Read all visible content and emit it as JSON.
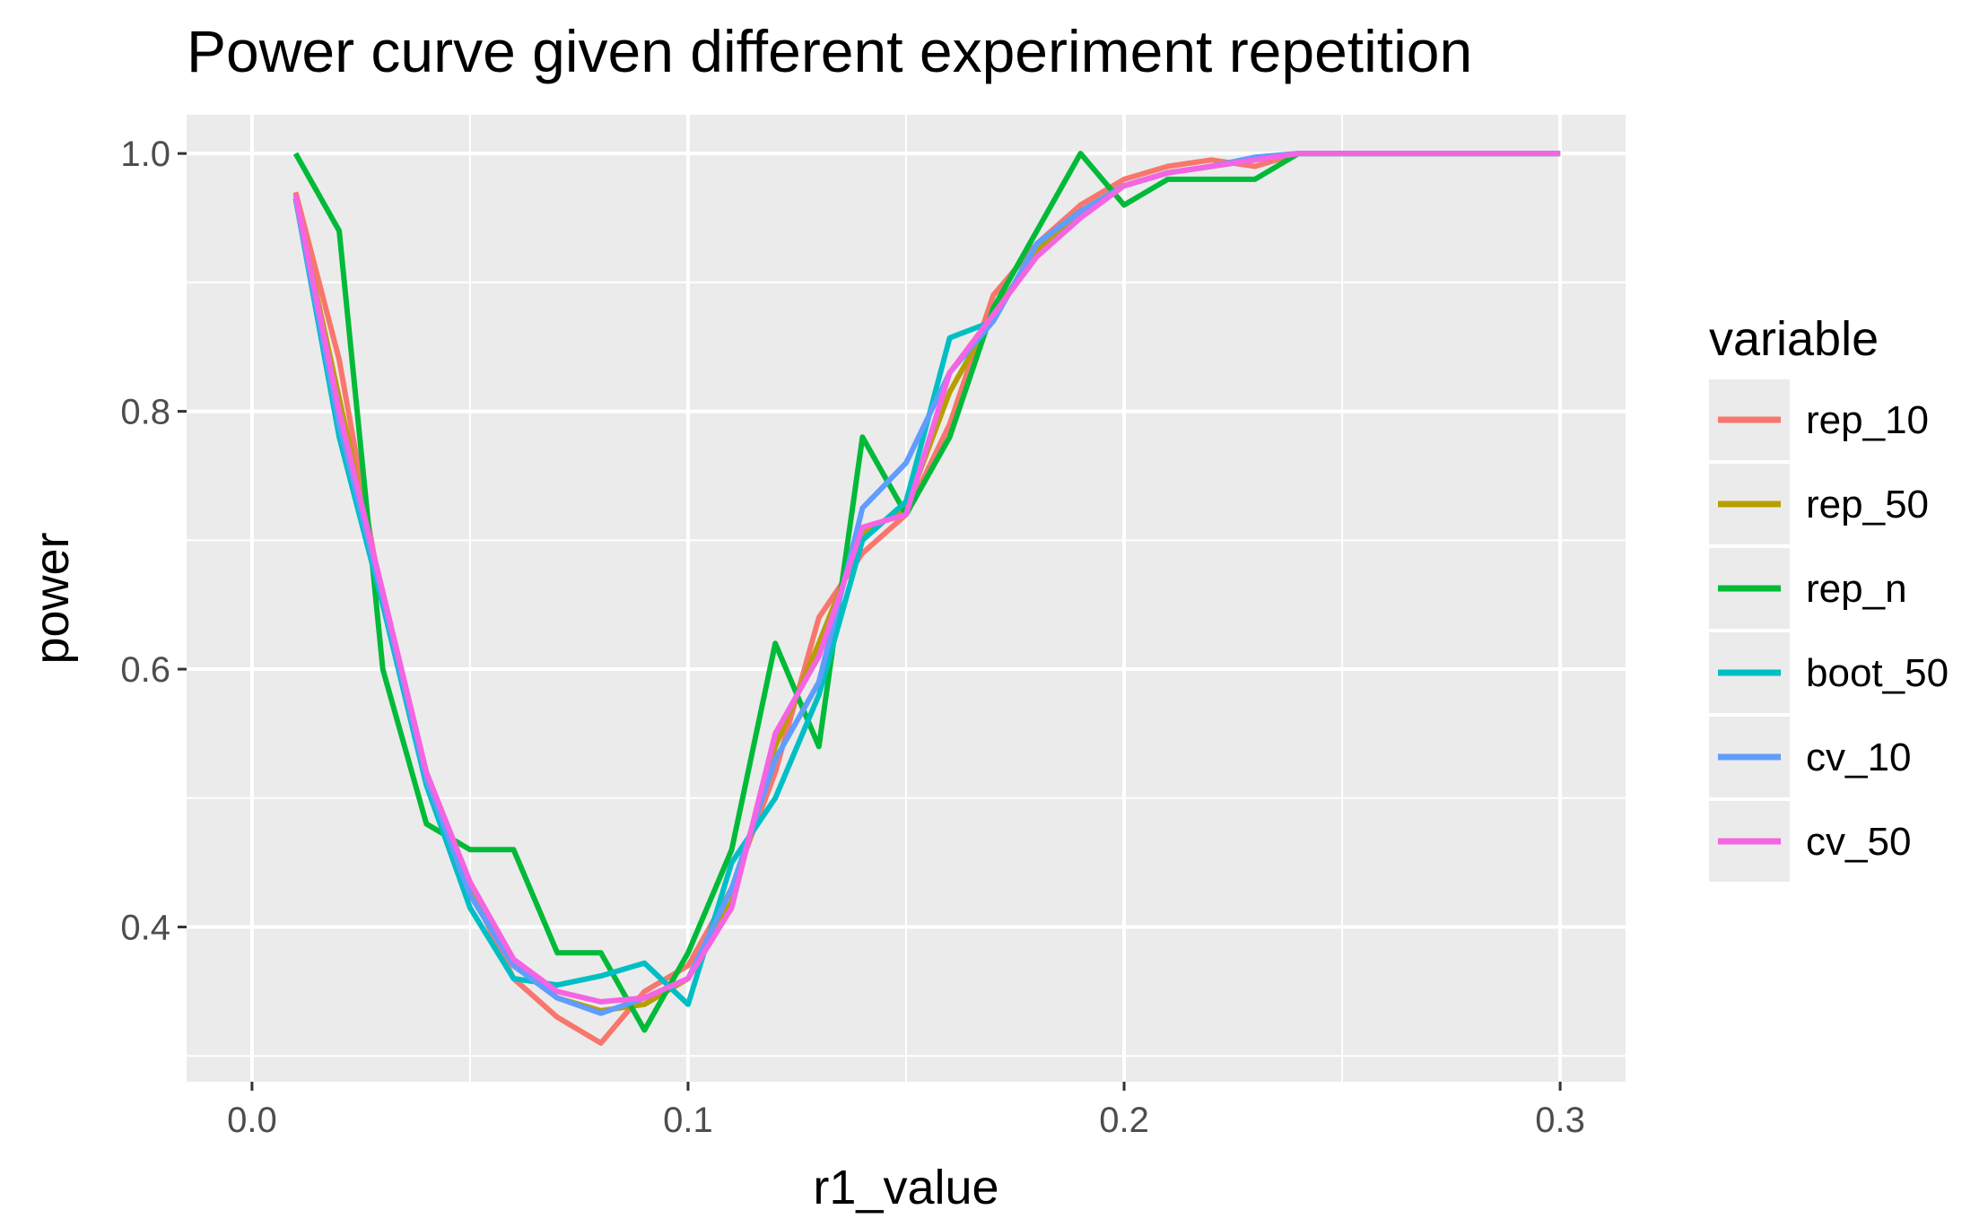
{
  "chart_data": {
    "type": "line",
    "title": "Power curve given different experiment repetition",
    "xlabel": "r1_value",
    "ylabel": "power",
    "xlim": [
      -0.015,
      0.315
    ],
    "ylim": [
      0.28,
      1.03
    ],
    "xticks": [
      0.0,
      0.1,
      0.2,
      0.3
    ],
    "xtick_labels": [
      "0.0",
      "0.1",
      "0.2",
      "0.3"
    ],
    "yticks": [
      0.4,
      0.6,
      0.8,
      1.0
    ],
    "ytick_labels": [
      "0.4",
      "0.6",
      "0.8",
      "1.0"
    ],
    "grid": true,
    "legend_title": "variable",
    "legend_position": "right",
    "x": [
      0.01,
      0.02,
      0.03,
      0.04,
      0.05,
      0.06,
      0.07,
      0.08,
      0.09,
      0.1,
      0.11,
      0.12,
      0.13,
      0.14,
      0.15,
      0.16,
      0.17,
      0.18,
      0.19,
      0.2,
      0.21,
      0.22,
      0.23,
      0.24,
      0.25,
      0.26,
      0.27,
      0.28,
      0.29,
      0.3
    ],
    "series": [
      {
        "name": "rep_10",
        "color": "#F8766D",
        "values": [
          0.97,
          0.84,
          0.65,
          0.52,
          0.43,
          0.36,
          0.33,
          0.31,
          0.35,
          0.37,
          0.43,
          0.52,
          0.64,
          0.69,
          0.72,
          0.79,
          0.89,
          0.93,
          0.96,
          0.98,
          0.99,
          0.995,
          0.99,
          1.0,
          1.0,
          1.0,
          1.0,
          1.0,
          1.0,
          1.0
        ]
      },
      {
        "name": "rep_50",
        "color": "#B79F00",
        "values": [
          0.965,
          0.81,
          0.655,
          0.515,
          0.43,
          0.37,
          0.345,
          0.335,
          0.34,
          0.36,
          0.42,
          0.54,
          0.62,
          0.705,
          0.725,
          0.815,
          0.875,
          0.925,
          0.955,
          0.975,
          0.985,
          0.99,
          0.995,
          1.0,
          1.0,
          1.0,
          1.0,
          1.0,
          1.0,
          1.0
        ]
      },
      {
        "name": "rep_n",
        "color": "#00BA38",
        "values": [
          1.0,
          0.94,
          0.6,
          0.48,
          0.46,
          0.46,
          0.38,
          0.38,
          0.32,
          0.38,
          0.46,
          0.62,
          0.54,
          0.78,
          0.72,
          0.78,
          0.88,
          0.94,
          1.0,
          0.96,
          0.98,
          0.98,
          0.98,
          1.0,
          1.0,
          1.0,
          1.0,
          1.0,
          1.0,
          1.0
        ]
      },
      {
        "name": "boot_50",
        "color": "#00BFC4",
        "values": [
          0.965,
          0.78,
          0.65,
          0.51,
          0.415,
          0.36,
          0.355,
          0.362,
          0.372,
          0.34,
          0.45,
          0.5,
          0.58,
          0.7,
          0.73,
          0.857,
          0.87,
          0.93,
          0.955,
          0.975,
          0.985,
          0.99,
          0.997,
          1.0,
          1.0,
          1.0,
          1.0,
          1.0,
          1.0,
          1.0
        ]
      },
      {
        "name": "cv_10",
        "color": "#619CFF",
        "values": [
          0.965,
          0.79,
          0.655,
          0.515,
          0.425,
          0.37,
          0.345,
          0.333,
          0.345,
          0.36,
          0.43,
          0.53,
          0.59,
          0.725,
          0.76,
          0.83,
          0.87,
          0.93,
          0.955,
          0.975,
          0.985,
          0.99,
          0.997,
          1.0,
          1.0,
          1.0,
          1.0,
          1.0,
          1.0,
          1.0
        ]
      },
      {
        "name": "cv_50",
        "color": "#F564E3",
        "values": [
          0.968,
          0.8,
          0.66,
          0.52,
          0.435,
          0.375,
          0.35,
          0.342,
          0.345,
          0.36,
          0.415,
          0.55,
          0.61,
          0.71,
          0.72,
          0.83,
          0.875,
          0.92,
          0.95,
          0.975,
          0.985,
          0.99,
          0.995,
          1.0,
          1.0,
          1.0,
          1.0,
          1.0,
          1.0,
          1.0
        ]
      }
    ]
  }
}
